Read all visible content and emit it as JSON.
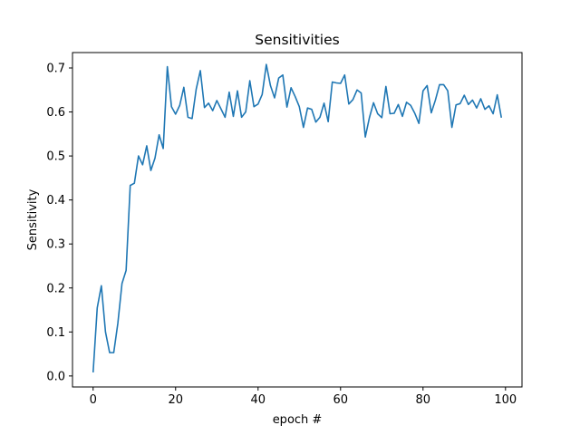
{
  "chart_data": {
    "type": "line",
    "title": "Sensitivities",
    "xlabel": "epoch #",
    "ylabel": "Sensitivity",
    "xlim": [
      -5,
      104
    ],
    "ylim": [
      -0.025,
      0.735
    ],
    "xticks": [
      0,
      20,
      40,
      60,
      80,
      100
    ],
    "xtick_labels": [
      "0",
      "20",
      "40",
      "60",
      "80",
      "100"
    ],
    "yticks": [
      0.0,
      0.1,
      0.2,
      0.3,
      0.4,
      0.5,
      0.6,
      0.7
    ],
    "ytick_labels": [
      "0.0",
      "0.1",
      "0.2",
      "0.3",
      "0.4",
      "0.5",
      "0.6",
      "0.7"
    ],
    "grid": false,
    "line_color": "#1f77b4",
    "series": [
      {
        "x": [
          0,
          1,
          2,
          3,
          4,
          5,
          6,
          7,
          8,
          9,
          10,
          11,
          12,
          13,
          14,
          15,
          16,
          17,
          18,
          19,
          20,
          21,
          22,
          23,
          24,
          25,
          26,
          27,
          28,
          29,
          30,
          31,
          32,
          33,
          34,
          35,
          36,
          37,
          38,
          39,
          40,
          41,
          42,
          43,
          44,
          45,
          46,
          47,
          48,
          49,
          50,
          51,
          52,
          53,
          54,
          55,
          56,
          57,
          58,
          59,
          60,
          61,
          62,
          63,
          64,
          65,
          66,
          67,
          68,
          69,
          70,
          71,
          72,
          73,
          74,
          75,
          76,
          77,
          78,
          79,
          80,
          81,
          82,
          83,
          84,
          85,
          86,
          87,
          88,
          89,
          90,
          91,
          92,
          93,
          94,
          95,
          96,
          97,
          98,
          99
        ],
        "values": [
          0.008,
          0.155,
          0.205,
          0.1,
          0.053,
          0.053,
          0.12,
          0.21,
          0.24,
          0.433,
          0.438,
          0.5,
          0.48,
          0.523,
          0.467,
          0.495,
          0.548,
          0.517,
          0.703,
          0.612,
          0.595,
          0.615,
          0.656,
          0.588,
          0.585,
          0.652,
          0.694,
          0.61,
          0.62,
          0.603,
          0.626,
          0.607,
          0.588,
          0.645,
          0.59,
          0.648,
          0.588,
          0.6,
          0.671,
          0.612,
          0.618,
          0.64,
          0.708,
          0.66,
          0.632,
          0.677,
          0.684,
          0.611,
          0.655,
          0.635,
          0.612,
          0.565,
          0.609,
          0.606,
          0.577,
          0.588,
          0.62,
          0.578,
          0.668,
          0.666,
          0.665,
          0.684,
          0.618,
          0.628,
          0.65,
          0.643,
          0.543,
          0.587,
          0.621,
          0.596,
          0.587,
          0.658,
          0.596,
          0.597,
          0.617,
          0.59,
          0.622,
          0.615,
          0.597,
          0.574,
          0.648,
          0.66,
          0.598,
          0.627,
          0.662,
          0.662,
          0.648,
          0.565,
          0.616,
          0.619,
          0.638,
          0.617,
          0.627,
          0.609,
          0.63,
          0.606,
          0.614,
          0.596,
          0.639,
          0.587
        ]
      }
    ]
  }
}
